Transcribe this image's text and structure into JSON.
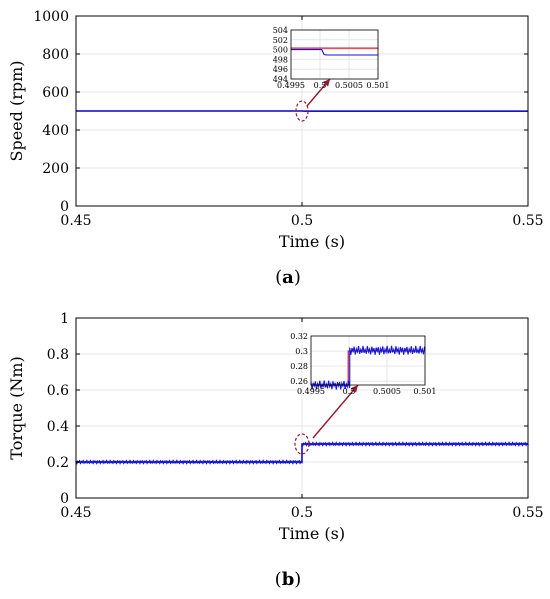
{
  "colors": {
    "measured": "#1515d8",
    "reference": "#d8182a",
    "grid": "#e6e6e6",
    "axis": "#000000"
  },
  "chart_data": [
    {
      "type": "line",
      "panel_label": "a",
      "xlabel": "Time (s)",
      "ylabel": "Speed (rpm)",
      "xlim": [
        0.45,
        0.55
      ],
      "ylim": [
        0,
        1000
      ],
      "xticks": [
        0.45,
        0.5,
        0.55
      ],
      "xtick_labels": [
        "0.45",
        "0.5",
        "0.55"
      ],
      "yticks": [
        0,
        200,
        400,
        600,
        800,
        1000
      ],
      "ytick_labels": [
        "0",
        "200",
        "400",
        "600",
        "800",
        "1000"
      ],
      "grid": true,
      "series": [
        {
          "x": [
            0.45,
            0.5,
            0.5005,
            0.55
          ],
          "y": [
            500,
            500,
            499,
            499
          ]
        },
        {
          "x": [
            0.45,
            0.55
          ],
          "y": [
            500,
            500
          ]
        }
      ],
      "inset": {
        "xlim": [
          0.4995,
          0.501
        ],
        "ylim": [
          494,
          504
        ],
        "xtick_labels": [
          "0.4995",
          "0.5",
          "0.5005",
          "0.501"
        ],
        "xticks": [
          0.4995,
          0.5,
          0.5005,
          0.501
        ],
        "ytick_labels": [
          "494",
          "496",
          "498",
          "500",
          "502",
          "504"
        ],
        "yticks": [
          494,
          496,
          498,
          500,
          502,
          504
        ],
        "series": [
          {
            "x": [
              0.4995,
              0.50003,
              0.50007,
              0.50012,
              0.501
            ],
            "y": [
              500,
              500,
              499,
              498.9,
              498.9
            ]
          },
          {
            "x": [
              0.4995,
              0.501
            ],
            "y": [
              500.3,
              500.3
            ]
          }
        ],
        "highlight": {
          "x": 0.5,
          "y": 500
        }
      }
    },
    {
      "type": "line",
      "panel_label": "b",
      "xlabel": "Time (s)",
      "ylabel": "Torque (Nm)",
      "xlim": [
        0.45,
        0.55
      ],
      "ylim": [
        0,
        1
      ],
      "xticks": [
        0.45,
        0.5,
        0.55
      ],
      "xtick_labels": [
        "0.45",
        "0.5",
        "0.55"
      ],
      "yticks": [
        0,
        0.2,
        0.4,
        0.6,
        0.8,
        1
      ],
      "ytick_labels": [
        "0",
        "0.2",
        "0.4",
        "0.6",
        "0.8",
        "1"
      ],
      "grid": true,
      "series": [
        {
          "x": [
            0.45,
            0.5,
            0.5,
            0.55
          ],
          "y": [
            0.2,
            0.2,
            0.3,
            0.3
          ],
          "ripple": 0.006
        },
        {
          "x": [
            0.45,
            0.5,
            0.5,
            0.55
          ],
          "y": [
            0.2,
            0.2,
            0.3,
            0.3
          ]
        }
      ],
      "inset": {
        "xlim": [
          0.4995,
          0.501
        ],
        "ylim": [
          0.255,
          0.32
        ],
        "xtick_labels": [
          "0.4995",
          "0.5",
          "0.5005",
          "0.501"
        ],
        "xticks": [
          0.4995,
          0.5,
          0.5005,
          0.501
        ],
        "ytick_labels": [
          "0.26",
          "0.28",
          "0.3",
          "0.32"
        ],
        "yticks": [
          0.26,
          0.28,
          0.3,
          0.32
        ],
        "series": [
          {
            "x": [
              0.4995,
              0.50001,
              0.50001,
              0.501
            ],
            "y": [
              0.255,
              0.255,
              0.301,
              0.301
            ],
            "ripple": 0.006
          },
          {
            "x": [
              0.4995,
              0.49999,
              0.49999,
              0.501
            ],
            "y": [
              0.255,
              0.255,
              0.3,
              0.3
            ]
          }
        ],
        "highlight": {
          "x": 0.5,
          "y": 0.3
        }
      }
    }
  ]
}
